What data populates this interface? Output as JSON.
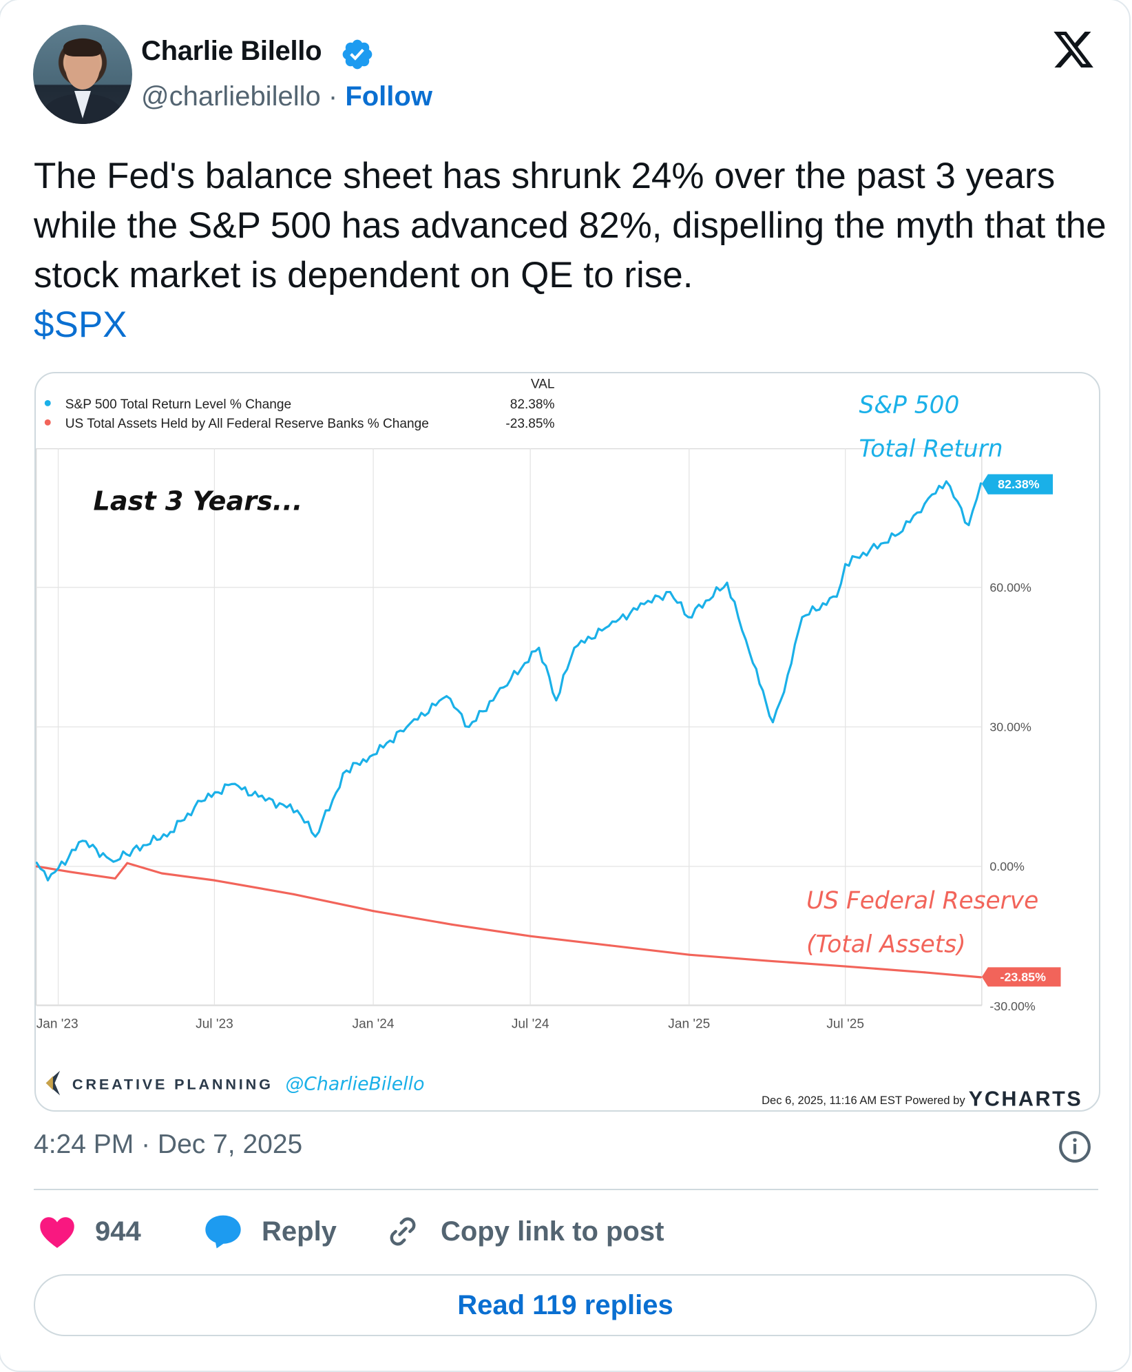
{
  "author": {
    "name": "Charlie Bilello",
    "handle": "@charliebilello",
    "separator": "·",
    "follow_label": "Follow",
    "verified": true
  },
  "post": {
    "text": "The Fed's balance sheet has shrunk 24% over the past 3 years while the S&P 500 has advanced 82%, dispelling the myth that the stock market is dependent on QE to rise.",
    "cashtag": "$SPX",
    "timestamp": "4:24 PM · Dec 7, 2025"
  },
  "actions": {
    "likes": "944",
    "reply_label": "Reply",
    "copy_link_label": "Copy link to post",
    "read_replies_label": "Read 119 replies"
  },
  "colors": {
    "sp500": "#1ab0e8",
    "fed": "#f2645a",
    "like": "#f91880",
    "reply": "#1d9bf0",
    "link": "#0a6fd1"
  },
  "chart_data": {
    "type": "line",
    "legend_header": "VAL",
    "legend_position": "top-left",
    "grid": true,
    "yaxis_side": "right",
    "ylim": [
      -30,
      90
    ],
    "ytick_labels": [
      "60.00%",
      "30.00%",
      "0.00%",
      "-30.00%"
    ],
    "yticks": [
      60,
      30,
      0,
      -30
    ],
    "xtick_labels": [
      "Jan '23",
      "Jul '23",
      "Jan '24",
      "Jul '24",
      "Jan '25",
      "Jul '25"
    ],
    "xticks": [
      "2023-01-01",
      "2023-07-01",
      "2024-01-01",
      "2024-07-01",
      "2025-01-01",
      "2025-07-01"
    ],
    "series": [
      {
        "name": "S&P 500 Total Return Level % Change",
        "value_label": "82.38%",
        "color": "#1ab0e8",
        "x": [
          "2022-12-07",
          "2022-12-20",
          "2023-01-29",
          "2023-03-06",
          "2023-03-21",
          "2023-05-11",
          "2023-06-16",
          "2023-07-21",
          "2023-08-21",
          "2023-10-05",
          "2023-10-26",
          "2023-12-01",
          "2024-01-01",
          "2024-02-09",
          "2024-03-26",
          "2024-04-21",
          "2024-05-31",
          "2024-07-11",
          "2024-07-31",
          "2024-08-21",
          "2024-09-30",
          "2024-11-10",
          "2024-12-10",
          "2024-12-31",
          "2025-02-14",
          "2025-03-12",
          "2025-04-08",
          "2025-04-21",
          "2025-05-12",
          "2025-06-21",
          "2025-07-01",
          "2025-09-01",
          "2025-10-01",
          "2025-10-26",
          "2025-11-21",
          "2025-12-05"
        ],
        "y": [
          0.8,
          -3,
          5.5,
          1,
          2.6,
          7.4,
          14,
          17.7,
          15,
          12,
          6.4,
          20.6,
          24,
          30,
          36.6,
          30,
          38.5,
          47,
          35.7,
          47,
          51.7,
          56.4,
          59,
          53.6,
          61,
          46,
          31,
          37.5,
          53.6,
          58,
          65,
          71.5,
          78,
          82.8,
          73.4,
          82.38
        ]
      },
      {
        "name": "US Total Assets Held by All Federal Reserve Banks % Change",
        "value_label": "-23.85%",
        "color": "#f2645a",
        "x": [
          "2022-12-07",
          "2023-01-15",
          "2023-03-08",
          "2023-03-22",
          "2023-05-01",
          "2023-07-01",
          "2023-10-01",
          "2024-01-01",
          "2024-04-01",
          "2024-07-01",
          "2024-10-01",
          "2025-01-01",
          "2025-04-01",
          "2025-07-01",
          "2025-10-01",
          "2025-12-05"
        ],
        "y": [
          0,
          -1.2,
          -2.6,
          0.7,
          -1.5,
          -3,
          -6,
          -9.6,
          -12.5,
          -15,
          -17,
          -19,
          -20.3,
          -21.5,
          -22.8,
          -23.85
        ]
      }
    ],
    "annotations": {
      "sp500_line1": "S&P 500",
      "sp500_line2": "Total Return",
      "period": "Last 3 Years...",
      "fed_line1": "US Federal Reserve",
      "fed_line2": "(Total Assets)"
    },
    "footer": {
      "brand": "CREATIVE PLANNING",
      "brand_handle": "@CharlieBilello",
      "timestamp": "Dec 6, 2025, 11:16 AM EST Powered by",
      "provider": "YCHARTS"
    }
  }
}
